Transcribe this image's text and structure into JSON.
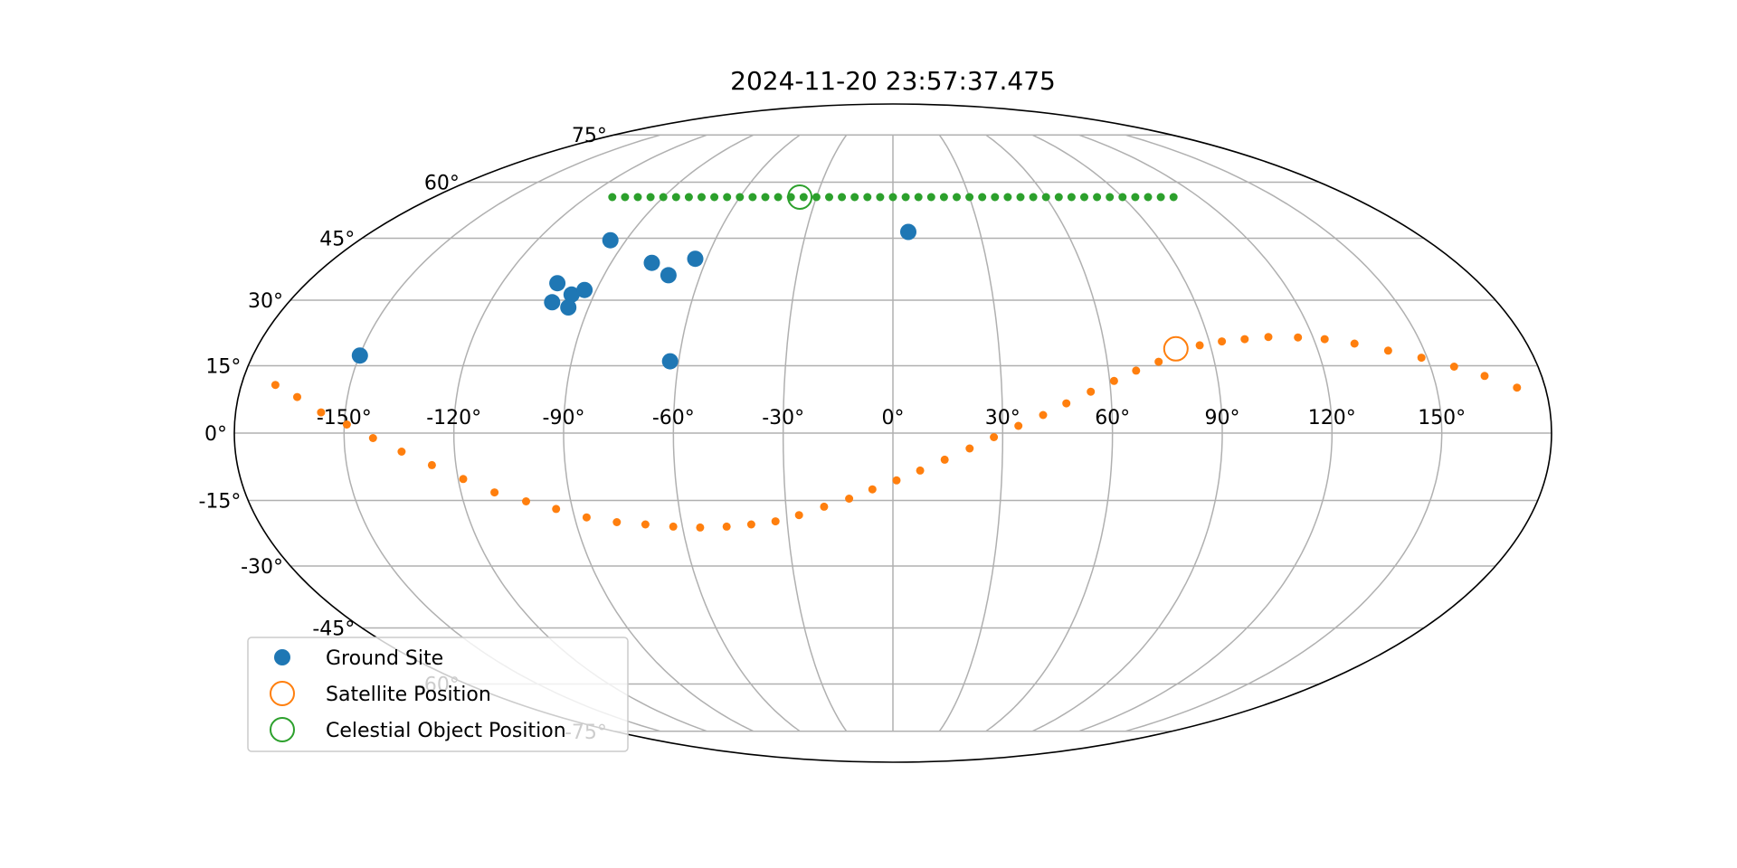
{
  "chart_data": {
    "type": "scatter",
    "projection": "mollweide",
    "title": "2024-11-20 23:57:37.475",
    "grid": true,
    "legend_position": "lower-left",
    "lon_ticks": [
      -150,
      -120,
      -90,
      -60,
      -30,
      0,
      30,
      60,
      90,
      120,
      150
    ],
    "lon_tick_labels": [
      "-150°",
      "-120°",
      "-90°",
      "-60°",
      "-30°",
      "0°",
      "30°",
      "60°",
      "90°",
      "120°",
      "150°"
    ],
    "lat_ticks": [
      75,
      60,
      45,
      30,
      15,
      0,
      -15,
      -30,
      -45,
      -60,
      -75
    ],
    "lat_tick_labels": [
      "75°",
      "60°",
      "45°",
      "30°",
      "15°",
      "0°",
      "-15°",
      "-30°",
      "-45°",
      "-60°",
      "-75°"
    ],
    "colors": {
      "ground_site": "#1f77b4",
      "satellite": "#ff7f0e",
      "celestial": "#2ca02c",
      "grid": "#b0b0b0",
      "outline": "#000000"
    },
    "series": [
      {
        "name": "Ground Site",
        "marker": "filled-circle",
        "points": [
          {
            "lon": -149.9,
            "lat": 17.3
          },
          {
            "lon": -103.0,
            "lat": 34.0
          },
          {
            "lon": -101.5,
            "lat": 29.5
          },
          {
            "lon": -96.8,
            "lat": 31.3
          },
          {
            "lon": -96.0,
            "lat": 28.3
          },
          {
            "lon": -93.6,
            "lat": 32.4
          },
          {
            "lon": -95.3,
            "lat": 44.5
          },
          {
            "lon": -77.0,
            "lat": 38.9
          },
          {
            "lon": -69.9,
            "lat": 35.9
          },
          {
            "lon": -63.7,
            "lat": 39.9
          },
          {
            "lon": -62.4,
            "lat": 16.0
          },
          {
            "lon": 5.3,
            "lat": 46.6
          }
        ]
      },
      {
        "name": "Satellite Position",
        "marker": "hollow-circle",
        "current": {
          "lon": 80.0,
          "lat": 18.8
        },
        "ground_track": [
          {
            "lon": -170.6,
            "lat": 10.7
          },
          {
            "lon": -163.8,
            "lat": 8.0
          },
          {
            "lon": -156.6,
            "lat": 4.6
          },
          {
            "lon": -149.3,
            "lat": 1.9
          },
          {
            "lon": -142.1,
            "lat": -1.1
          },
          {
            "lon": -134.5,
            "lat": -4.1
          },
          {
            "lon": -126.6,
            "lat": -7.1
          },
          {
            "lon": -118.6,
            "lat": -10.2
          },
          {
            "lon": -110.7,
            "lat": -13.2
          },
          {
            "lon": -102.5,
            "lat": -15.2
          },
          {
            "lon": -94.6,
            "lat": -16.9
          },
          {
            "lon": -86.6,
            "lat": -18.8
          },
          {
            "lon": -78.4,
            "lat": -19.9
          },
          {
            "lon": -70.4,
            "lat": -20.4
          },
          {
            "lon": -62.6,
            "lat": -20.9
          },
          {
            "lon": -55.0,
            "lat": -21.1
          },
          {
            "lon": -47.4,
            "lat": -20.9
          },
          {
            "lon": -40.3,
            "lat": -20.4
          },
          {
            "lon": -33.3,
            "lat": -19.7
          },
          {
            "lon": -26.5,
            "lat": -18.3
          },
          {
            "lon": -19.3,
            "lat": -16.4
          },
          {
            "lon": -12.2,
            "lat": -14.6
          },
          {
            "lon": -5.7,
            "lat": -12.5
          },
          {
            "lon": 1.0,
            "lat": -10.5
          },
          {
            "lon": 7.5,
            "lat": -8.3
          },
          {
            "lon": 14.2,
            "lat": -5.9
          },
          {
            "lon": 21.0,
            "lat": -3.4
          },
          {
            "lon": 27.6,
            "lat": -0.9
          },
          {
            "lon": 34.3,
            "lat": 1.6
          },
          {
            "lon": 41.1,
            "lat": 4.0
          },
          {
            "lon": 47.6,
            "lat": 6.6
          },
          {
            "lon": 54.5,
            "lat": 9.2
          },
          {
            "lon": 61.2,
            "lat": 11.6
          },
          {
            "lon": 67.7,
            "lat": 13.9
          },
          {
            "lon": 74.4,
            "lat": 15.9
          },
          {
            "lon": 87.0,
            "lat": 19.6
          },
          {
            "lon": 93.6,
            "lat": 20.5
          },
          {
            "lon": 100.3,
            "lat": 21.0
          },
          {
            "lon": 107.3,
            "lat": 21.5
          },
          {
            "lon": 115.7,
            "lat": 21.4
          },
          {
            "lon": 123.1,
            "lat": 21.0
          },
          {
            "lon": 131.1,
            "lat": 20.0
          },
          {
            "lon": 139.8,
            "lat": 18.4
          },
          {
            "lon": 148.4,
            "lat": 16.8
          },
          {
            "lon": 156.6,
            "lat": 14.8
          },
          {
            "lon": 164.2,
            "lat": 12.7
          },
          {
            "lon": 172.2,
            "lat": 10.1
          }
        ]
      },
      {
        "name": "Celestial Object Position",
        "marker": "hollow-circle",
        "current": {
          "lon": -36.5,
          "lat": 55.8
        },
        "track_lat": 55.8,
        "track_lon_range": [
          -110,
          110
        ],
        "track_lon_step": 5
      }
    ]
  }
}
